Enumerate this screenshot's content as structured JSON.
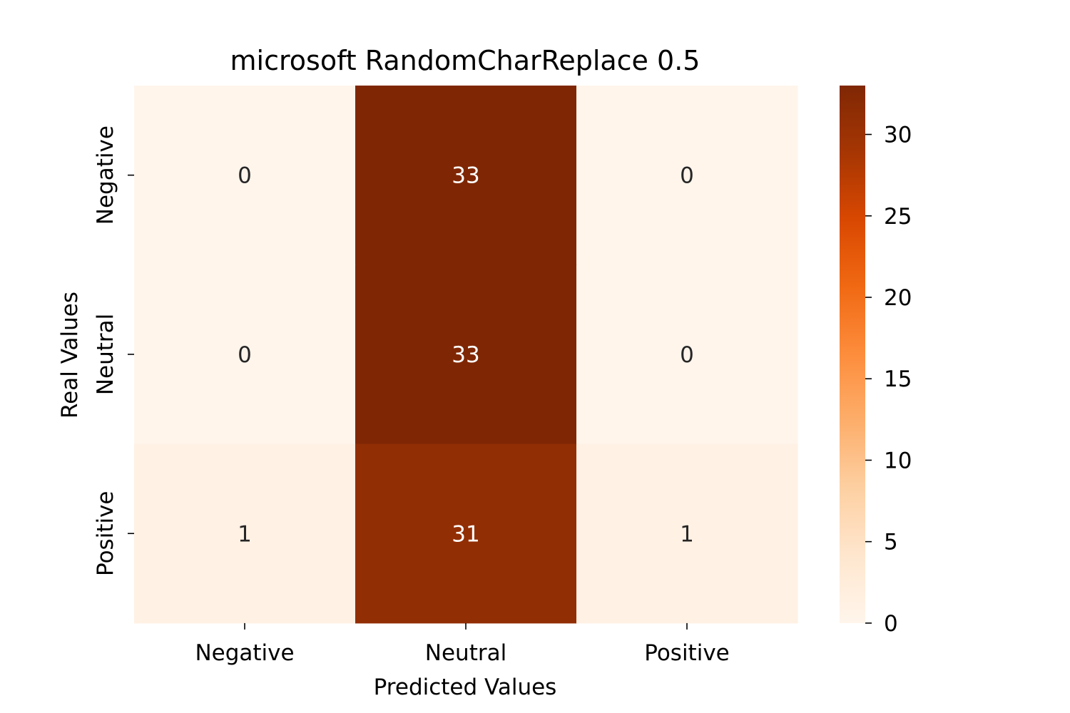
{
  "chart_data": {
    "type": "heatmap",
    "title": "microsoft RandomCharReplace 0.5",
    "xlabel": "Predicted Values",
    "ylabel": "Real Values",
    "x_categories": [
      "Negative",
      "Neutral",
      "Positive"
    ],
    "y_categories": [
      "Negative",
      "Neutral",
      "Positive"
    ],
    "values": [
      [
        0,
        33,
        0
      ],
      [
        0,
        33,
        0
      ],
      [
        1,
        31,
        1
      ]
    ],
    "colorbar": {
      "colormap": "Oranges",
      "range": [
        0,
        33
      ],
      "ticks": [
        0,
        5,
        10,
        15,
        20,
        25,
        30
      ],
      "tick_labels": [
        "0",
        "5",
        "10",
        "15",
        "20",
        "25",
        "30"
      ]
    },
    "colors": {
      "low": "#fff5eb",
      "high": "#7f2704",
      "text_dark": "#262626",
      "text_light": "#ffffff"
    }
  }
}
